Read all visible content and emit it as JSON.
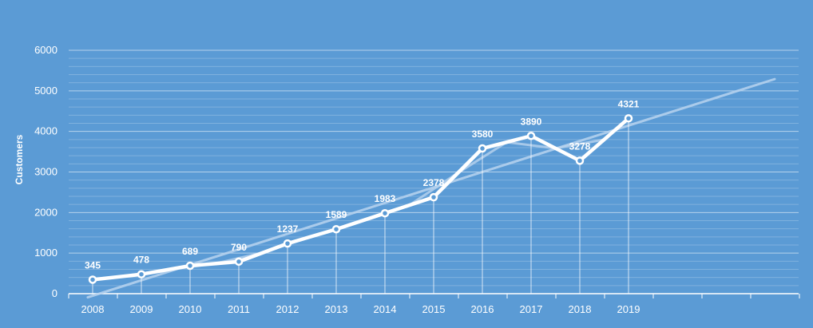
{
  "chart_data": {
    "type": "line",
    "categories": [
      "2008",
      "2009",
      "2010",
      "2011",
      "2012",
      "2013",
      "2014",
      "2015",
      "2016",
      "2017",
      "2018",
      "2019"
    ],
    "series": [
      {
        "values": [
          345,
          478,
          689,
          790,
          1237,
          1589,
          1983,
          2378,
          3580,
          3890,
          3278,
          4321
        ]
      }
    ],
    "ylabel": "Customers",
    "ylim": [
      0,
      6000
    ],
    "yticks": [
      "0",
      "1000",
      "2000",
      "3000",
      "4000",
      "5000",
      "6000"
    ],
    "data_labels": [
      "345",
      "478",
      "689",
      "790",
      "1237",
      "1589",
      "1983",
      "2378",
      "3580",
      "3890",
      "3278",
      "4321"
    ],
    "trendline_note_hidden": "",
    "grid": true,
    "colors": {
      "background": "#5b9bd5",
      "line": "#ffffff",
      "trend": "#b9d3ee"
    }
  }
}
